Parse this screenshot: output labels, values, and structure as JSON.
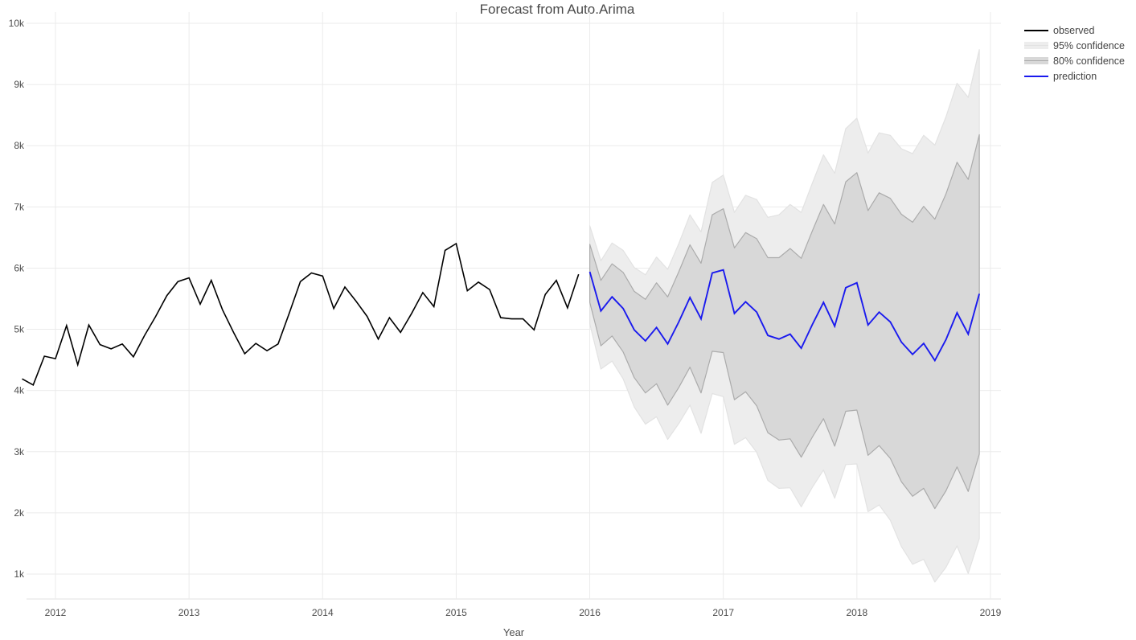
{
  "page": {
    "title": "Forecast from Auto.Arima"
  },
  "colors": {
    "background": "#ffffff",
    "gridline": "#ebebeb",
    "axis_text": "#4d4d4d",
    "title_text": "#4a4a4a",
    "observed_line": "#000000",
    "prediction_line": "#1a1aee",
    "band95_fill": "#ededed",
    "band95_edge": "#e2e2e2",
    "band80_fill": "#d8d8d8",
    "band80_edge": "#ababab"
  },
  "chart_data": {
    "type": "line",
    "title": "Forecast from Auto.Arima",
    "xlabel": "Year",
    "ylabel": "",
    "value_unit": "thousands",
    "grid": true,
    "legend_position": "right",
    "x_axis": {
      "tick_labels": [
        "2012",
        "2013",
        "2014",
        "2015",
        "2016",
        "2017",
        "2018",
        "2019"
      ],
      "tick_month_offsets": [
        0,
        12,
        24,
        36,
        48,
        60,
        72,
        84
      ]
    },
    "y_axis": {
      "tick_labels": [
        "1k",
        "2k",
        "3k",
        "4k",
        "5k",
        "6k",
        "7k",
        "8k",
        "9k",
        "10k"
      ],
      "tick_values_k": [
        1,
        2,
        3,
        4,
        5,
        6,
        7,
        8,
        9,
        10
      ],
      "range_k": [
        0.6,
        10.2
      ]
    },
    "legend": [
      {
        "label": "observed",
        "type": "line",
        "color": "#000000"
      },
      {
        "label": "95% confidence",
        "type": "band",
        "color": "#ededed",
        "edge": "#e2e2e2"
      },
      {
        "label": "80% confidence",
        "type": "band",
        "color": "#d8d8d8",
        "edge": "#ababab"
      },
      {
        "label": "prediction",
        "type": "line",
        "color": "#1a1aee"
      }
    ],
    "series": [
      {
        "name": "observed",
        "kind": "line",
        "start_month_offset": -3,
        "values_k": [
          4.19,
          4.09,
          4.56,
          4.52,
          5.06,
          4.42,
          5.07,
          4.75,
          4.68,
          4.76,
          4.55,
          4.9,
          5.21,
          5.55,
          5.78,
          5.84,
          5.41,
          5.8,
          5.32,
          4.95,
          4.6,
          4.77,
          4.65,
          4.76,
          5.26,
          5.78,
          5.92,
          5.87,
          5.34,
          5.69,
          5.46,
          5.21,
          4.84,
          5.19,
          4.95,
          5.26,
          5.6,
          5.37,
          6.29,
          6.4,
          5.63,
          5.77,
          5.65,
          5.19,
          5.17,
          5.17,
          4.99,
          5.57,
          5.8,
          5.35,
          5.9
        ]
      },
      {
        "name": "prediction",
        "kind": "line",
        "start_month_offset": 48,
        "values_k": [
          5.94,
          5.3,
          5.53,
          5.34,
          4.99,
          4.81,
          5.03,
          4.76,
          5.12,
          5.52,
          5.17,
          5.92,
          5.97,
          5.26,
          5.45,
          5.28,
          4.9,
          4.84,
          4.92,
          4.69,
          5.08,
          5.44,
          5.05,
          5.68,
          5.76,
          5.07,
          5.28,
          5.12,
          4.79,
          4.59,
          4.77,
          4.49,
          4.83,
          5.27,
          4.92,
          5.58
        ]
      },
      {
        "name": "80% confidence",
        "kind": "band",
        "start_month_offset": 48,
        "upper_k": [
          6.39,
          5.8,
          6.07,
          5.93,
          5.62,
          5.49,
          5.76,
          5.53,
          5.94,
          6.38,
          6.08,
          6.87,
          6.97,
          6.33,
          6.58,
          6.48,
          6.17,
          6.17,
          6.32,
          6.16,
          6.61,
          7.04,
          6.72,
          7.41,
          7.56,
          6.94,
          7.23,
          7.14,
          6.88,
          6.75,
          7.01,
          6.8,
          7.21,
          7.73,
          7.45,
          8.18
        ],
        "lower_k": [
          5.44,
          4.73,
          4.89,
          4.63,
          4.21,
          3.96,
          4.11,
          3.76,
          4.05,
          4.38,
          3.96,
          4.64,
          4.62,
          3.85,
          3.98,
          3.75,
          3.31,
          3.19,
          3.21,
          2.91,
          3.24,
          3.54,
          3.09,
          3.66,
          3.68,
          2.94,
          3.1,
          2.89,
          2.51,
          2.27,
          2.4,
          2.07,
          2.36,
          2.75,
          2.35,
          2.96
        ]
      },
      {
        "name": "95% confidence",
        "kind": "band",
        "start_month_offset": 48,
        "upper_k": [
          6.69,
          6.12,
          6.41,
          6.29,
          6.01,
          5.89,
          6.18,
          5.98,
          6.4,
          6.87,
          6.59,
          7.4,
          7.52,
          6.91,
          7.19,
          7.12,
          6.83,
          6.87,
          7.04,
          6.91,
          7.39,
          7.85,
          7.55,
          8.28,
          8.45,
          7.88,
          8.21,
          8.17,
          7.95,
          7.87,
          8.17,
          8.01,
          8.47,
          9.02,
          8.79,
          9.57
        ],
        "lower_k": [
          5.09,
          4.35,
          4.48,
          4.19,
          3.73,
          3.45,
          3.57,
          3.2,
          3.46,
          3.76,
          3.3,
          3.95,
          3.9,
          3.12,
          3.23,
          2.99,
          2.53,
          2.4,
          2.41,
          2.1,
          2.42,
          2.7,
          2.24,
          2.79,
          2.8,
          2.02,
          2.13,
          1.88,
          1.45,
          1.16,
          1.24,
          0.87,
          1.11,
          1.46,
          1.01,
          1.58
        ]
      }
    ]
  }
}
